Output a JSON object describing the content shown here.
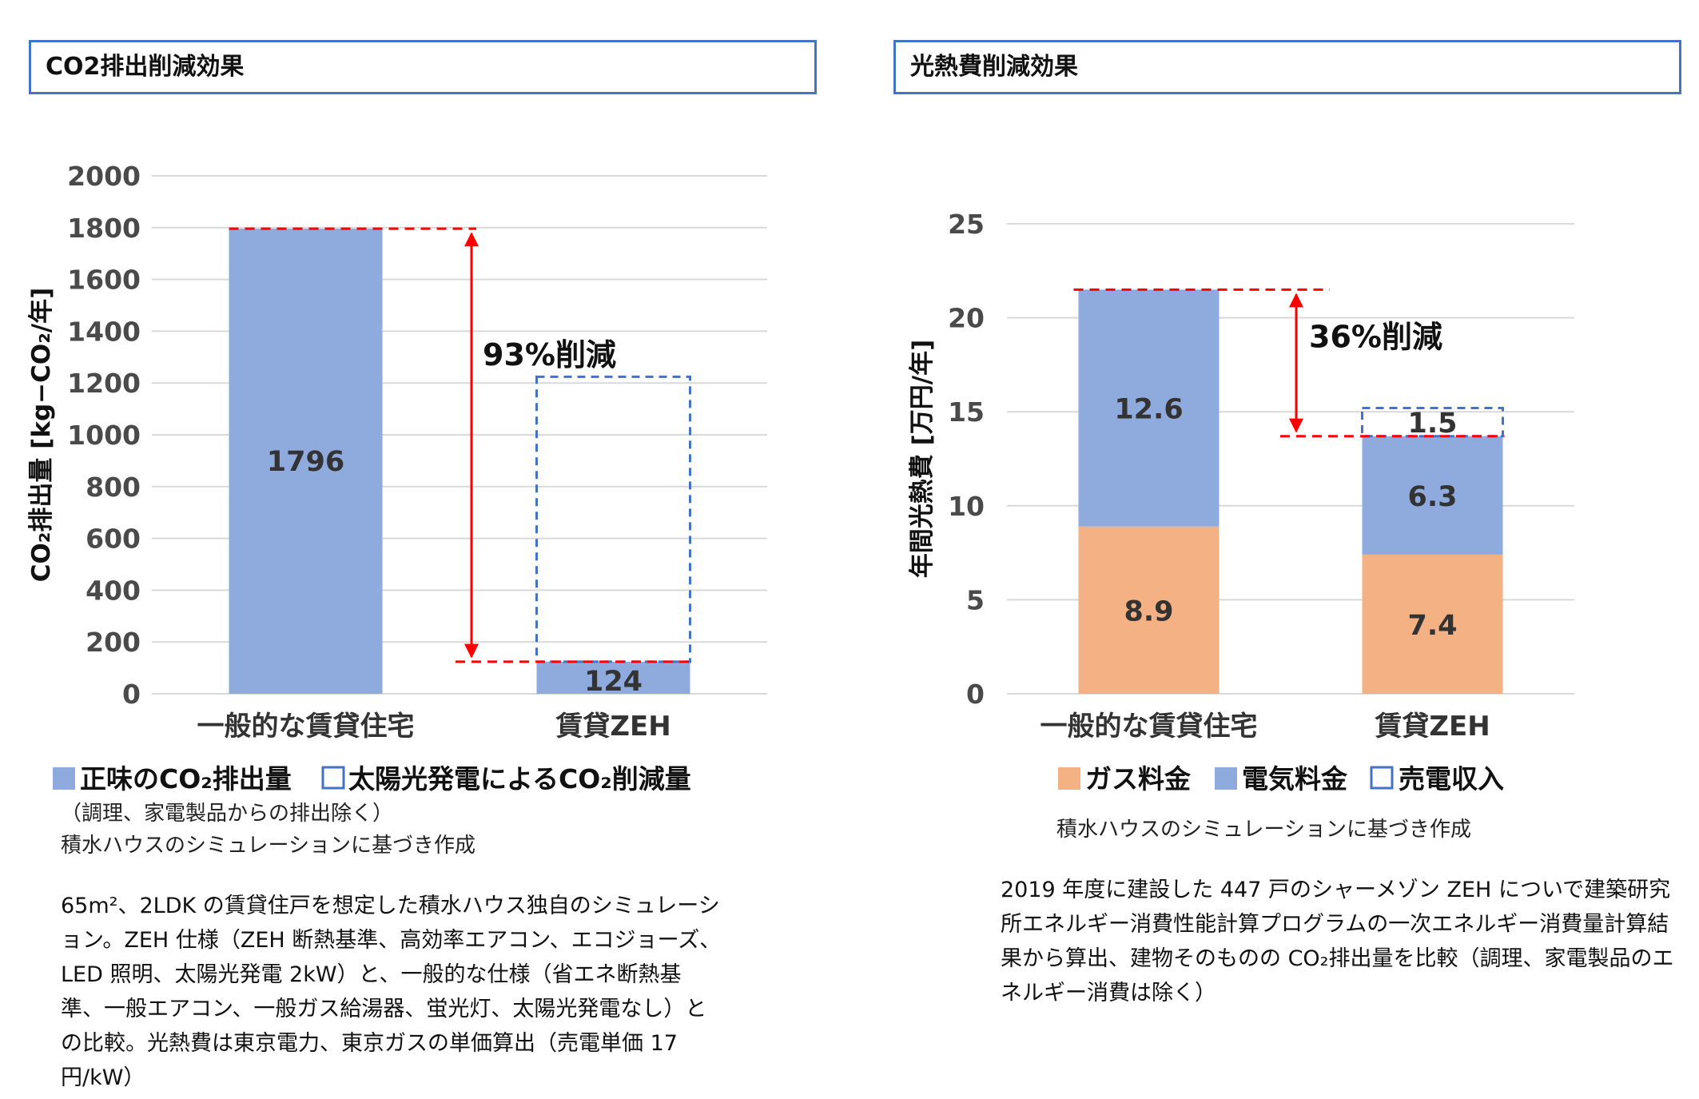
{
  "left_panel": {
    "title": "CO2排出削減効果",
    "note1": "（調理、家電製品からの排出除く）",
    "note2": "積水ハウスのシミュレーションに基づき作成",
    "description": "65m²、2LDK の賃貸住戸を想定した積水ハウス独自のシミュレーション。ZEH 仕様（ZEH 断熱基準、高効率エアコン、エコジョーズ、LED 照明、太陽光発電 2kW）と、一般的な仕様（省エネ断熱基準、一般エアコン、一般ガス給湯器、蛍光灯、太陽光発電なし）との比較。光熱費は東京電力、東京ガスの単価算出（売電単価 17円/kW）"
  },
  "right_panel": {
    "title": "光熱費削減効果",
    "note1": "積水ハウスのシミュレーションに基づき作成",
    "description": "2019 年度に建設した 447 戸のシャーメゾン ZEH についで建築研究所エネルギー消費性能計算プログラムの一次エネルギー消費量計算結果から算出、建物そのものの CO₂排出量を比較（調理、家電製品のエネルギー消費は除く）"
  },
  "chart_data": [
    {
      "type": "bar",
      "ylabel": "CO₂排出量 [kg−CO₂/年]",
      "ylim": [
        0,
        2000
      ],
      "yticks": [
        0,
        200,
        400,
        600,
        800,
        1000,
        1200,
        1400,
        1600,
        1800,
        2000
      ],
      "categories": [
        "一般的な賃貸住宅",
        "賃貸ZEH"
      ],
      "series": [
        {
          "name": "正味のCO₂排出量",
          "values": [
            1796,
            124
          ],
          "color": "#8faadc",
          "style": "solid"
        },
        {
          "name": "太陽光発電によるCO₂削減量",
          "values": [
            0,
            1100
          ],
          "color": "#4472c4",
          "style": "dashed"
        }
      ],
      "value_labels": [
        "1796",
        "124"
      ],
      "annotation": "93%削減",
      "legend_position": "bottom",
      "grid": true
    },
    {
      "type": "bar",
      "ylabel": "年間光熱費 [万円/年]",
      "ylim": [
        0,
        25
      ],
      "yticks": [
        0,
        5,
        10,
        15,
        20,
        25
      ],
      "categories": [
        "一般的な賃貸住宅",
        "賃貸ZEH"
      ],
      "series": [
        {
          "name": "ガス料金",
          "values": [
            8.9,
            7.4
          ],
          "labels": [
            "8.9",
            "7.4"
          ],
          "color": "#f4b183",
          "style": "solid"
        },
        {
          "name": "電気料金",
          "values": [
            12.6,
            6.3
          ],
          "labels": [
            "12.6",
            "6.3"
          ],
          "color": "#8faadc",
          "style": "solid"
        },
        {
          "name": "売電収入",
          "values": [
            0,
            1.5
          ],
          "labels": [
            "",
            "1.5"
          ],
          "color": "#4472c4",
          "style": "dashed"
        }
      ],
      "annotation": "36%削減",
      "legend_position": "bottom",
      "grid": true
    }
  ]
}
